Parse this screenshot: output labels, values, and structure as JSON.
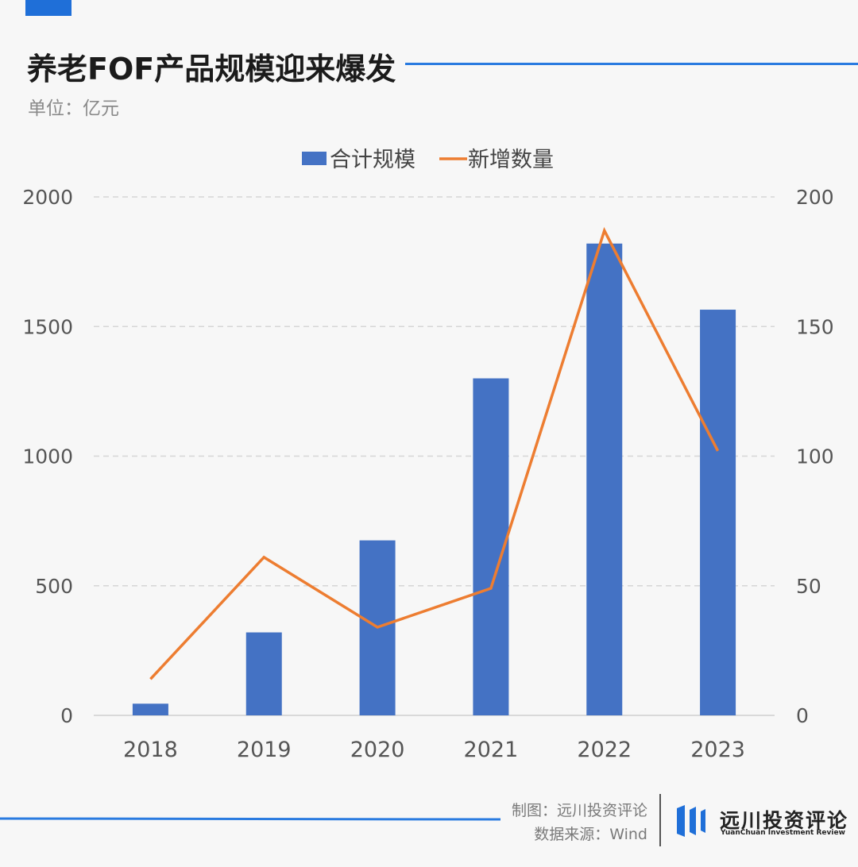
{
  "header": {
    "title": "养老FOF产品规模迎来爆发",
    "unit": "单位：亿元"
  },
  "footer": {
    "credit_line1": "制图：远川投资评论",
    "credit_line2": "数据来源：Wind",
    "logo_cn": "远川投资评论",
    "logo_en": "YuanChuan Investment Review"
  },
  "colors": {
    "accent": "#2a7be0",
    "bar": "#4472c4",
    "line": "#ed7d31",
    "grid": "#d6d6d6",
    "tick": "#555555"
  },
  "chart_data": {
    "type": "bar",
    "categories": [
      "2018",
      "2019",
      "2020",
      "2021",
      "2022",
      "2023"
    ],
    "series": [
      {
        "name": "合计规模",
        "type": "bar",
        "axis": "left",
        "values": [
          45,
          320,
          675,
          1300,
          1820,
          1565
        ]
      },
      {
        "name": "新增数量",
        "type": "line",
        "axis": "right",
        "values": [
          14,
          61,
          34,
          49,
          187,
          102
        ]
      }
    ],
    "y_left": {
      "ylim": [
        0,
        2000
      ],
      "ticks": [
        "0",
        "500",
        "1000",
        "1500",
        "2000"
      ]
    },
    "y_right": {
      "ylim": [
        0,
        200
      ],
      "ticks": [
        "0",
        "50",
        "100",
        "150",
        "200"
      ]
    },
    "grid": true,
    "legend_position": "top-center"
  }
}
